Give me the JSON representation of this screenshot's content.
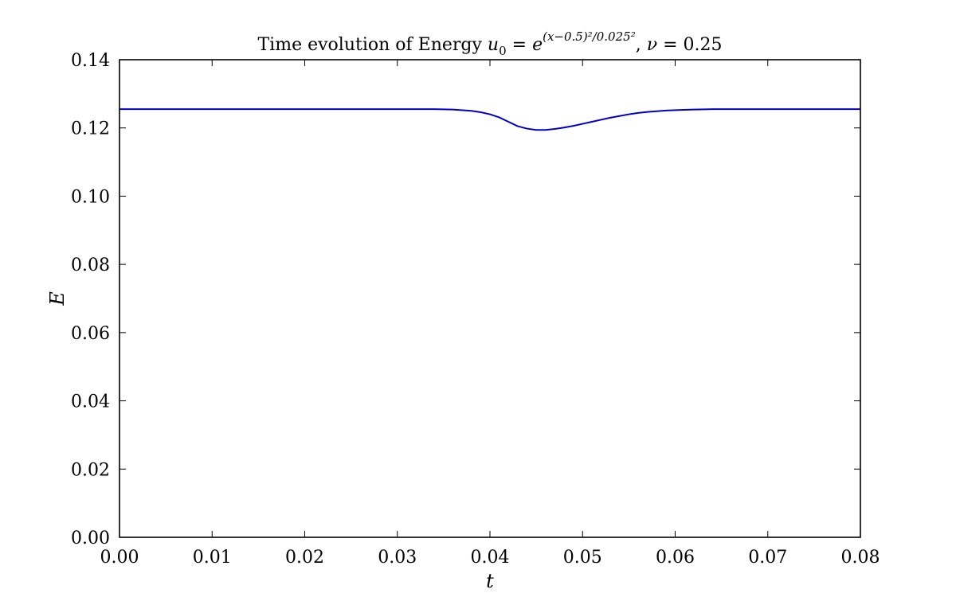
{
  "chart_data": {
    "type": "line",
    "title": {
      "prefix": "Time evolution of Energy ",
      "u": "u",
      "u_sub": "0",
      "eq1": " = ",
      "e": "e",
      "exponent": "(x−0.5)²/0.025²",
      "sep": ", ",
      "nu": "ν",
      "eq2": " = 0.25"
    },
    "xlabel": "t",
    "ylabel": "E",
    "xlim": [
      0.0,
      0.08
    ],
    "ylim": [
      0.0,
      0.14
    ],
    "xticks": [
      "0.00",
      "0.01",
      "0.02",
      "0.03",
      "0.04",
      "0.05",
      "0.06",
      "0.07",
      "0.08"
    ],
    "yticks": [
      "0.00",
      "0.02",
      "0.04",
      "0.06",
      "0.08",
      "0.10",
      "0.12",
      "0.14"
    ],
    "grid": false,
    "series": [
      {
        "color": "#0000cc",
        "x": [
          0.0,
          0.01,
          0.02,
          0.03,
          0.034,
          0.036,
          0.038,
          0.039,
          0.04,
          0.041,
          0.042,
          0.043,
          0.044,
          0.045,
          0.046,
          0.047,
          0.048,
          0.049,
          0.05,
          0.051,
          0.052,
          0.053,
          0.054,
          0.055,
          0.056,
          0.057,
          0.058,
          0.059,
          0.06,
          0.062,
          0.064,
          0.066,
          0.07,
          0.08
        ],
        "y": [
          0.1255,
          0.1255,
          0.1255,
          0.1255,
          0.1255,
          0.1254,
          0.125,
          0.1246,
          0.124,
          0.1231,
          0.1218,
          0.1205,
          0.1198,
          0.1194,
          0.1194,
          0.1197,
          0.1201,
          0.1206,
          0.1212,
          0.1218,
          0.1224,
          0.123,
          0.1235,
          0.124,
          0.1244,
          0.1247,
          0.1249,
          0.1251,
          0.1252,
          0.1254,
          0.1255,
          0.1255,
          0.1255,
          0.1255
        ]
      }
    ]
  }
}
